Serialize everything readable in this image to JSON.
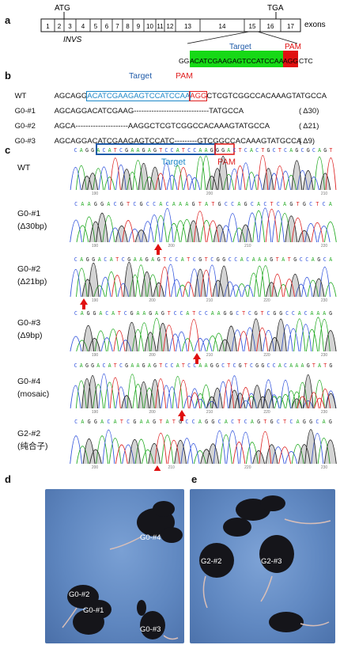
{
  "panels": {
    "a": "a",
    "b": "b",
    "c": "c",
    "d": "d",
    "e": "e"
  },
  "panel_a": {
    "atg": "ATG",
    "tga": "TGA",
    "exons_label": "exons",
    "gene": "INVS",
    "exon_numbers": [
      "1",
      "2",
      "3",
      "4",
      "5",
      "6",
      "7",
      "8",
      "9",
      "10",
      "11",
      "12",
      "13",
      "14",
      "15",
      "16",
      "17"
    ],
    "target_label": "Target",
    "pam_label": "PAM",
    "seq_prefix": "GG",
    "seq_target": "ACATCGAAGAGTCCATCCAA",
    "seq_pam": "AGG",
    "seq_suffix": "CTC"
  },
  "panel_b": {
    "target_label": "Target",
    "pam_label": "PAM",
    "wt": {
      "label": "WT",
      "prefix": "AGCAGG",
      "target": "ACATCGAAGAGTCCATCCAA",
      "pam": "AGG",
      "suffix": "CTCGTCGGCCACAAAGTATGCCA"
    },
    "rows": [
      {
        "label": "G0-#1",
        "seq": "AGCAGGACATCGAAG------------------------------TATGCCA",
        "note": "( Δ30)"
      },
      {
        "label": "G0-#2",
        "seq": "AGCA---------------------AAGGCTCGTCGGCCACAAAGTATGCCA",
        "note": "( Δ21)"
      },
      {
        "label": "G0-#3",
        "seq": "AGCAGGACATCGAAGAGTCCATC---------GTCGGCCACAAAGTATGCCA",
        "note": "( Δ9)"
      }
    ]
  },
  "panel_c": {
    "target_label": "Target",
    "pam_label": "PAM",
    "wt_seq": "CAGGACATCGAAGAGTCCATCCAAAGGCTCGTCGGCCACAAAG",
    "traces": [
      {
        "label1": "WT",
        "label2": "",
        "seq": "CAGGACATCGAAGAGTCCATCCAAGGGACTCACTGCTCAGCGCAGT",
        "ticks": [
          "190",
          "200",
          "210"
        ]
      },
      {
        "label1": "G0-#1",
        "label2": "(Δ30bp)",
        "seq": "CAAGGACGTCGCCACAAAGTATGCCAGCACTCAGTGCTCA",
        "ticks": [
          "190",
          "200",
          "210",
          "220"
        ]
      },
      {
        "label1": "G0-#2",
        "label2": "(Δ21bp)",
        "seq": "CAGGACATCGAAGAGTCCATCGTCGGCCACAAAGTATGCCAGCA",
        "ticks": [
          "190",
          "200",
          "210",
          "220",
          "230"
        ]
      },
      {
        "label1": "G0-#3",
        "label2": "(Δ9bp)",
        "seq": "CAGGACATCGAAGAGTCCATCCAAGGCTCGTCGGCCACAAAG",
        "ticks": [
          "190",
          "200",
          "210",
          "220",
          "230"
        ]
      },
      {
        "label1": "G0-#4",
        "label2": "(mosaic)",
        "seq": "CAGGACATCGAAGAGTCCATCCAAGGCTCGTCGGCCACAAAGTATG",
        "ticks": [
          "190",
          "200",
          "210",
          "220",
          "230"
        ]
      },
      {
        "label1": "G2-#2",
        "label2": "(纯合子)",
        "seq": "CAGGACATCGAAGTATGCCAGGCACTCAGTGCTCAGGCAG",
        "ticks": [
          "200",
          "210",
          "220",
          "230"
        ]
      }
    ]
  },
  "panel_d": {
    "mice": [
      "G0-#4",
      "G0-#2",
      "G0-#1",
      "G0-#3"
    ]
  },
  "panel_e": {
    "mice": [
      "G2-#2",
      "G2-#3"
    ]
  },
  "colors": {
    "A": "#22aa22",
    "C": "#3355dd",
    "G": "#222222",
    "T": "#dd2222",
    "target_green": "#16d916",
    "pam_red": "#e01010",
    "target_blue": "#1e5aa8",
    "pam_box_red": "#e02020",
    "target_text": "#1e88c8",
    "arrow": "#e01010",
    "photo_bg": "#5c84bd"
  }
}
